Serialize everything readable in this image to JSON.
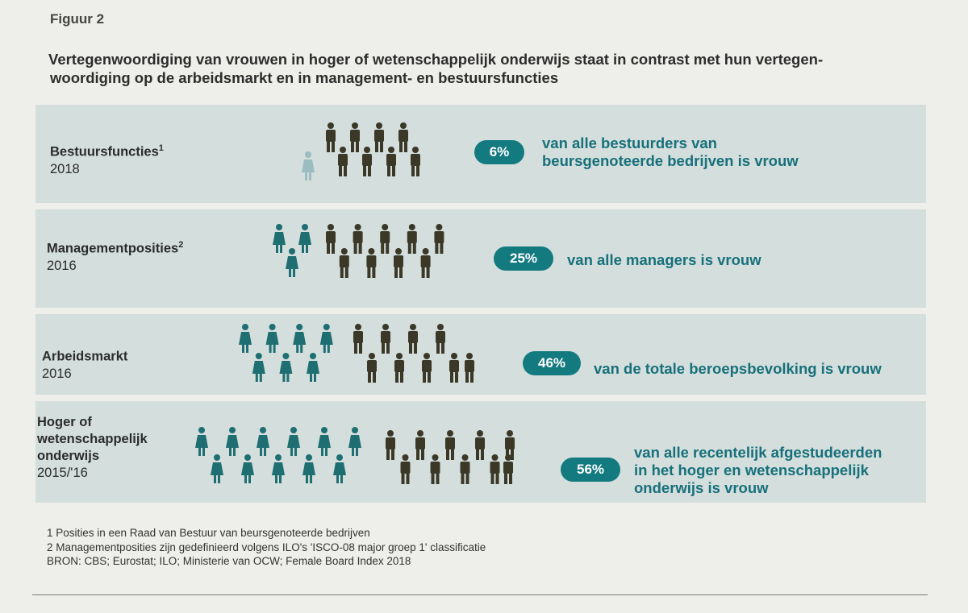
{
  "figure_label": "Figuur 2",
  "title": "Vertegenwoordiging van vrouwen in hoger of wetenschappelijk onderwijs staat in contrast met hun vertegen- woordiging op de arbeidsmarkt en in management- en bestuursfuncties",
  "title_lines": [
    "Vertegenwoordiging van vrouwen in hoger of wetenschappelijk onderwijs staat in contrast met hun vertegen-",
    "woordiging op de arbeidsmarkt en in management- en bestuursfuncties"
  ],
  "colors": {
    "panel": "#d3dedd",
    "woman": "#1f6e72",
    "woman_faded": "#9bbcc0",
    "man": "#3b3828",
    "accent": "#137a80",
    "text_accent": "#17707a"
  },
  "chart_data": {
    "type": "pictogram",
    "unit": "percentage of women",
    "rows": [
      {
        "label": "Bestuursfuncties",
        "footnote_ref": "1",
        "year": "2018",
        "value": 6,
        "value_label": "6%",
        "description_lines": [
          "van alle bestuurders van",
          "beursgenoteerde bedrijven is vrouw"
        ],
        "icons_women": 1,
        "icons_men": 8
      },
      {
        "label": "Managementposities",
        "footnote_ref": "2",
        "year": "2016",
        "value": 25,
        "value_label": "25%",
        "description_lines": [
          "van alle managers is vrouw"
        ],
        "icons_women": 3,
        "icons_men": 9
      },
      {
        "label": "Arbeidsmarkt",
        "footnote_ref": "",
        "year": "2016",
        "value": 46,
        "value_label": "46%",
        "description_lines": [
          "van de totale beroepsbevolking is vrouw"
        ],
        "icons_women": 7,
        "icons_men": 8
      },
      {
        "label_lines": [
          "Hoger of",
          "wetenschappelijk",
          "onderwijs"
        ],
        "footnote_ref": "",
        "year": "2015/'16",
        "value": 56,
        "value_label": "56%",
        "description_lines": [
          "van alle recentelijk afgestudeerden",
          "in het hoger en wetenschappelijk",
          "onderwijs is vrouw"
        ],
        "icons_women": 11,
        "icons_men": 9
      }
    ]
  },
  "footnotes": [
    "1 Posities in een Raad van Bestuur van beursgenoteerde bedrijven",
    "2 Managementposities zijn gedefinieerd volgens ILO's 'ISCO-08 major groep 1' classificatie",
    "BRON: CBS; Eurostat; ILO; Ministerie van OCW; Female Board Index 2018"
  ]
}
